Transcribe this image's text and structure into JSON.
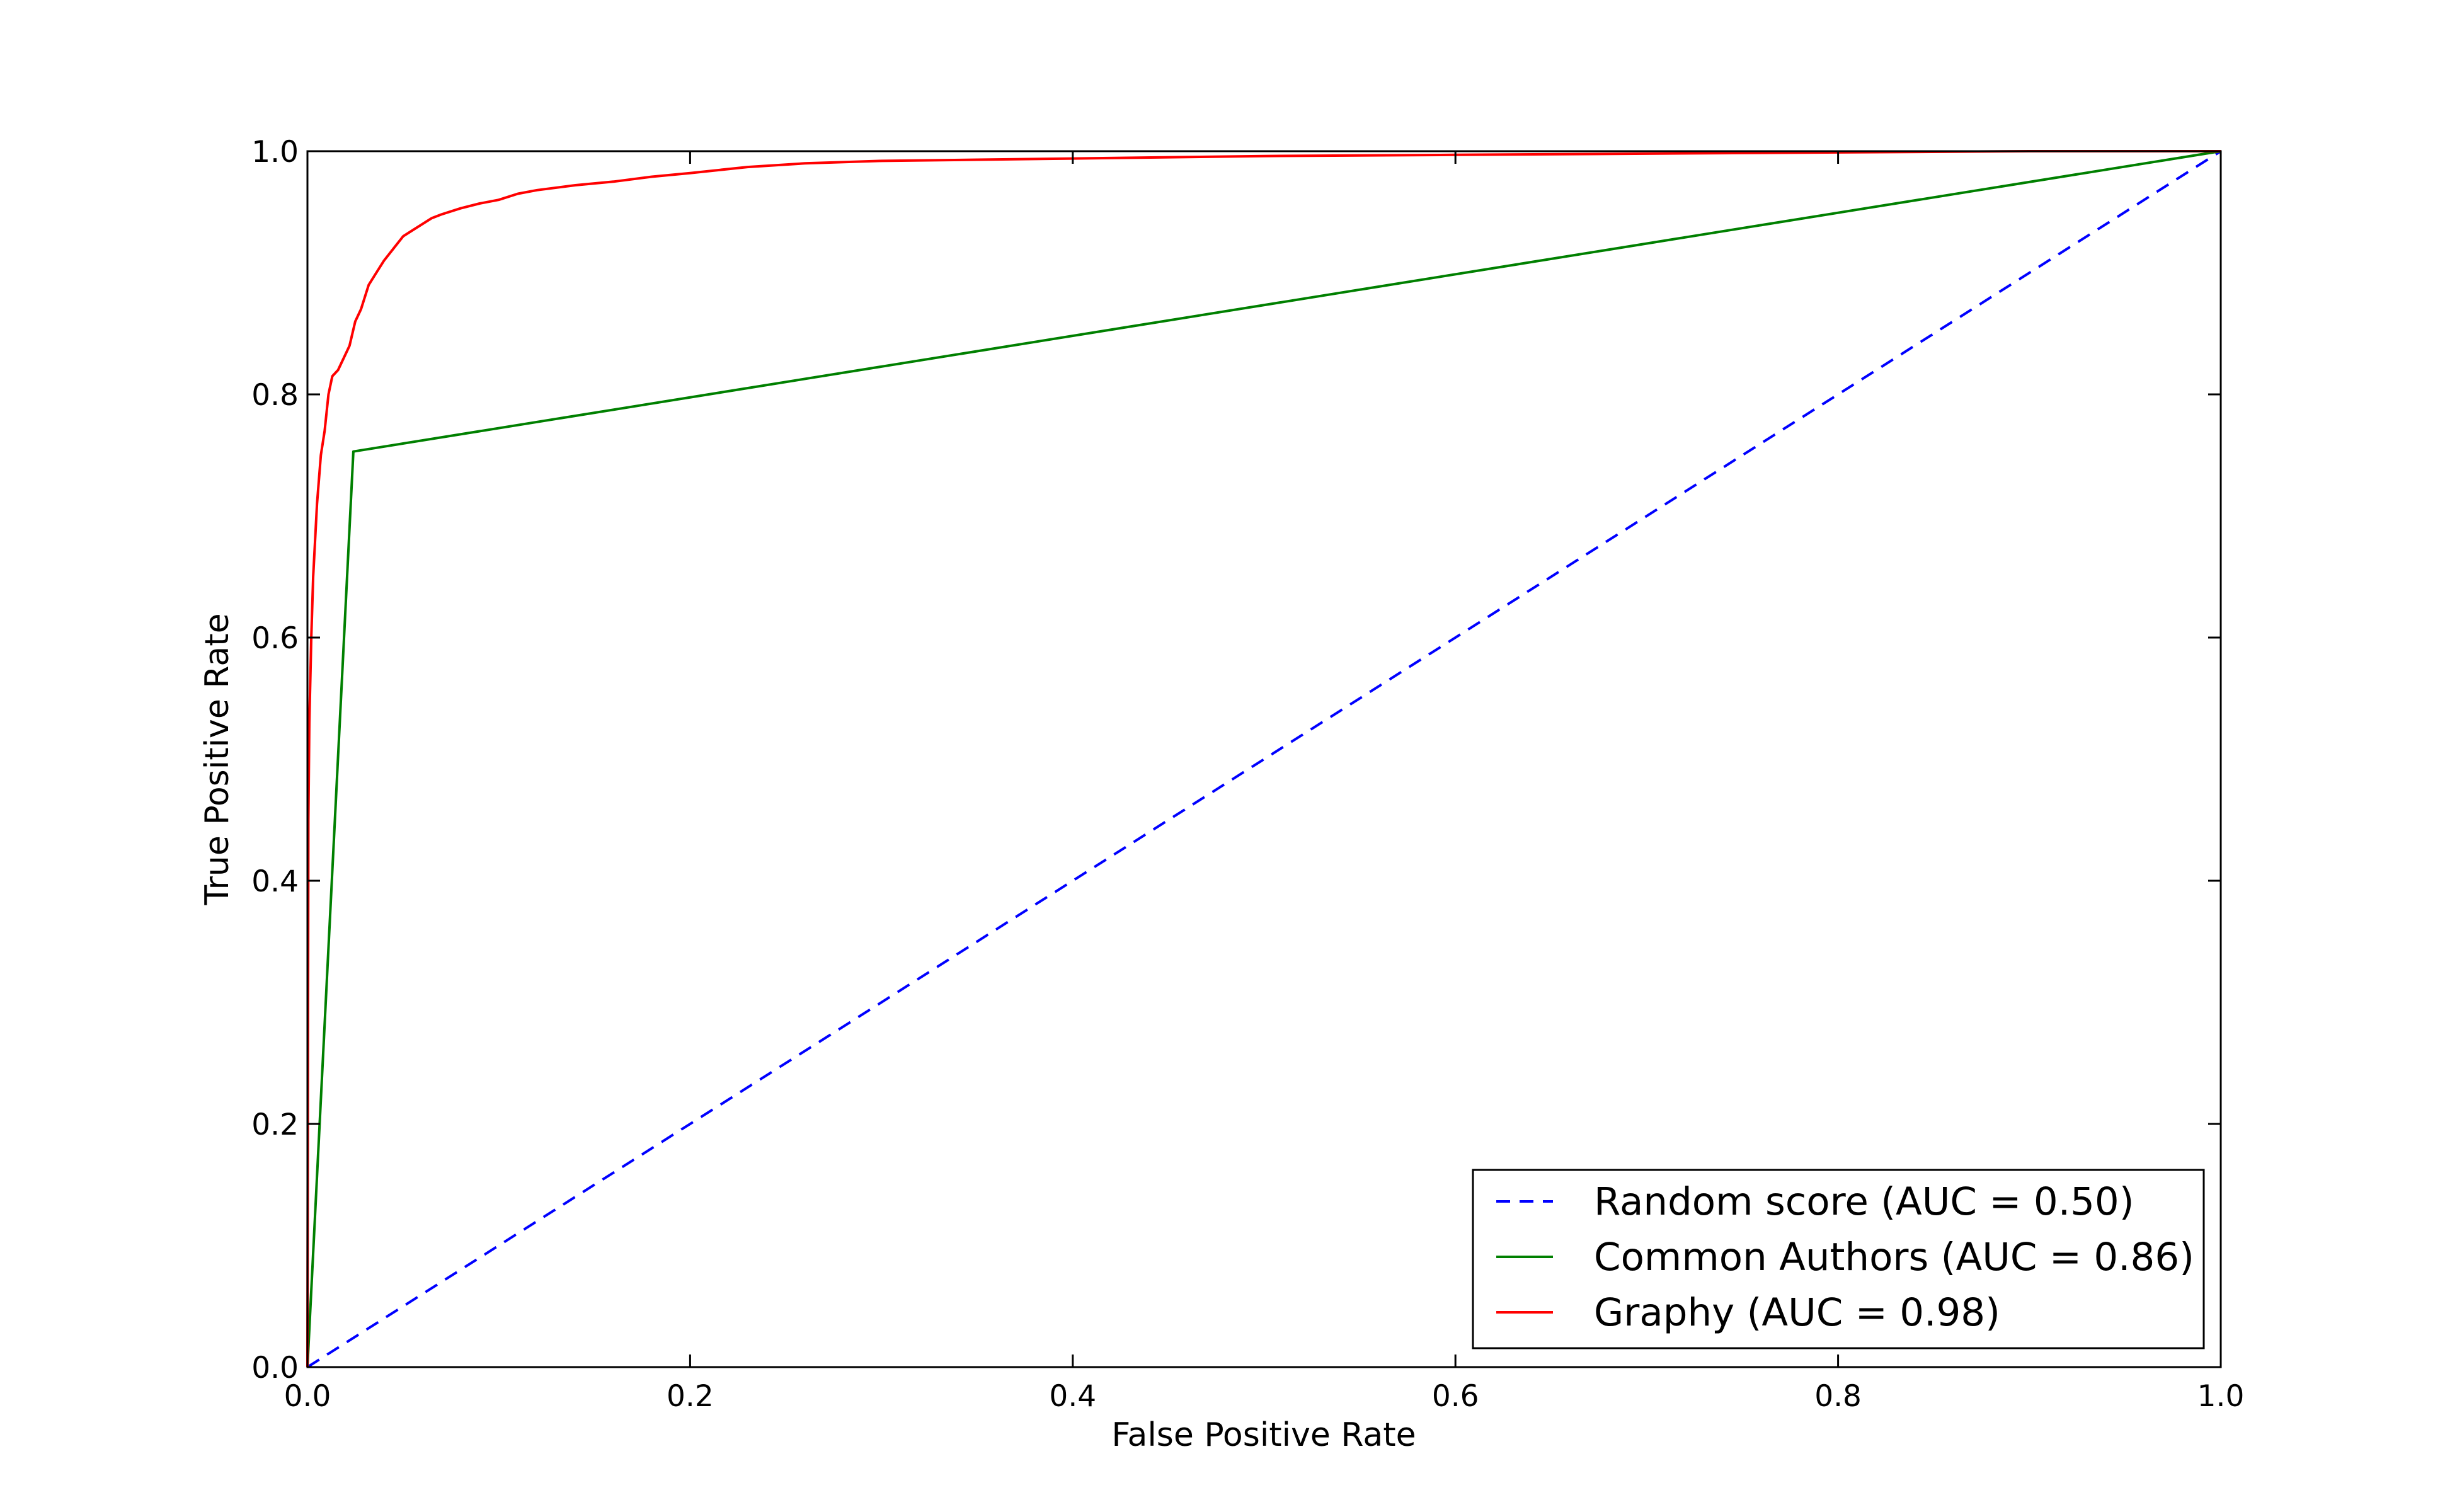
{
  "chart_data": {
    "type": "line",
    "title": "",
    "xlabel": "False Positive Rate",
    "ylabel": "True Positive Rate",
    "xlim": [
      0.0,
      1.0
    ],
    "ylim": [
      0.0,
      1.0
    ],
    "xticks": [
      "0.0",
      "0.2",
      "0.4",
      "0.6",
      "0.8",
      "1.0"
    ],
    "yticks": [
      "0.0",
      "0.2",
      "0.4",
      "0.6",
      "0.8",
      "1.0"
    ],
    "grid": false,
    "legend_position": "lower-right",
    "series": [
      {
        "name": "Random score (AUC = 0.50)",
        "color": "#0000ff",
        "style": "dashed",
        "x": [
          0.0,
          1.0
        ],
        "y": [
          0.0,
          1.0
        ]
      },
      {
        "name": "Common Authors (AUC = 0.86)",
        "color": "#008000",
        "style": "solid",
        "x": [
          0.0,
          0.024,
          1.0
        ],
        "y": [
          0.0,
          0.753,
          1.0
        ]
      },
      {
        "name": "Graphy (AUC = 0.98)",
        "color": "#ff0000",
        "style": "solid",
        "x": [
          0.0,
          0.0005,
          0.001,
          0.002,
          0.003,
          0.005,
          0.007,
          0.009,
          0.011,
          0.013,
          0.016,
          0.019,
          0.022,
          0.025,
          0.028,
          0.032,
          0.036,
          0.04,
          0.045,
          0.05,
          0.055,
          0.06,
          0.065,
          0.07,
          0.08,
          0.09,
          0.1,
          0.11,
          0.12,
          0.14,
          0.16,
          0.18,
          0.2,
          0.23,
          0.26,
          0.3,
          0.35,
          0.4,
          0.5,
          0.6,
          0.7,
          0.8,
          0.9,
          1.0
        ],
        "y": [
          0.0,
          0.45,
          0.53,
          0.6,
          0.65,
          0.71,
          0.75,
          0.77,
          0.8,
          0.815,
          0.82,
          0.83,
          0.84,
          0.86,
          0.87,
          0.89,
          0.9,
          0.91,
          0.92,
          0.93,
          0.935,
          0.94,
          0.945,
          0.948,
          0.953,
          0.957,
          0.96,
          0.965,
          0.968,
          0.972,
          0.975,
          0.979,
          0.982,
          0.987,
          0.99,
          0.992,
          0.993,
          0.994,
          0.996,
          0.997,
          0.998,
          0.999,
          1.0,
          1.0
        ]
      }
    ]
  }
}
